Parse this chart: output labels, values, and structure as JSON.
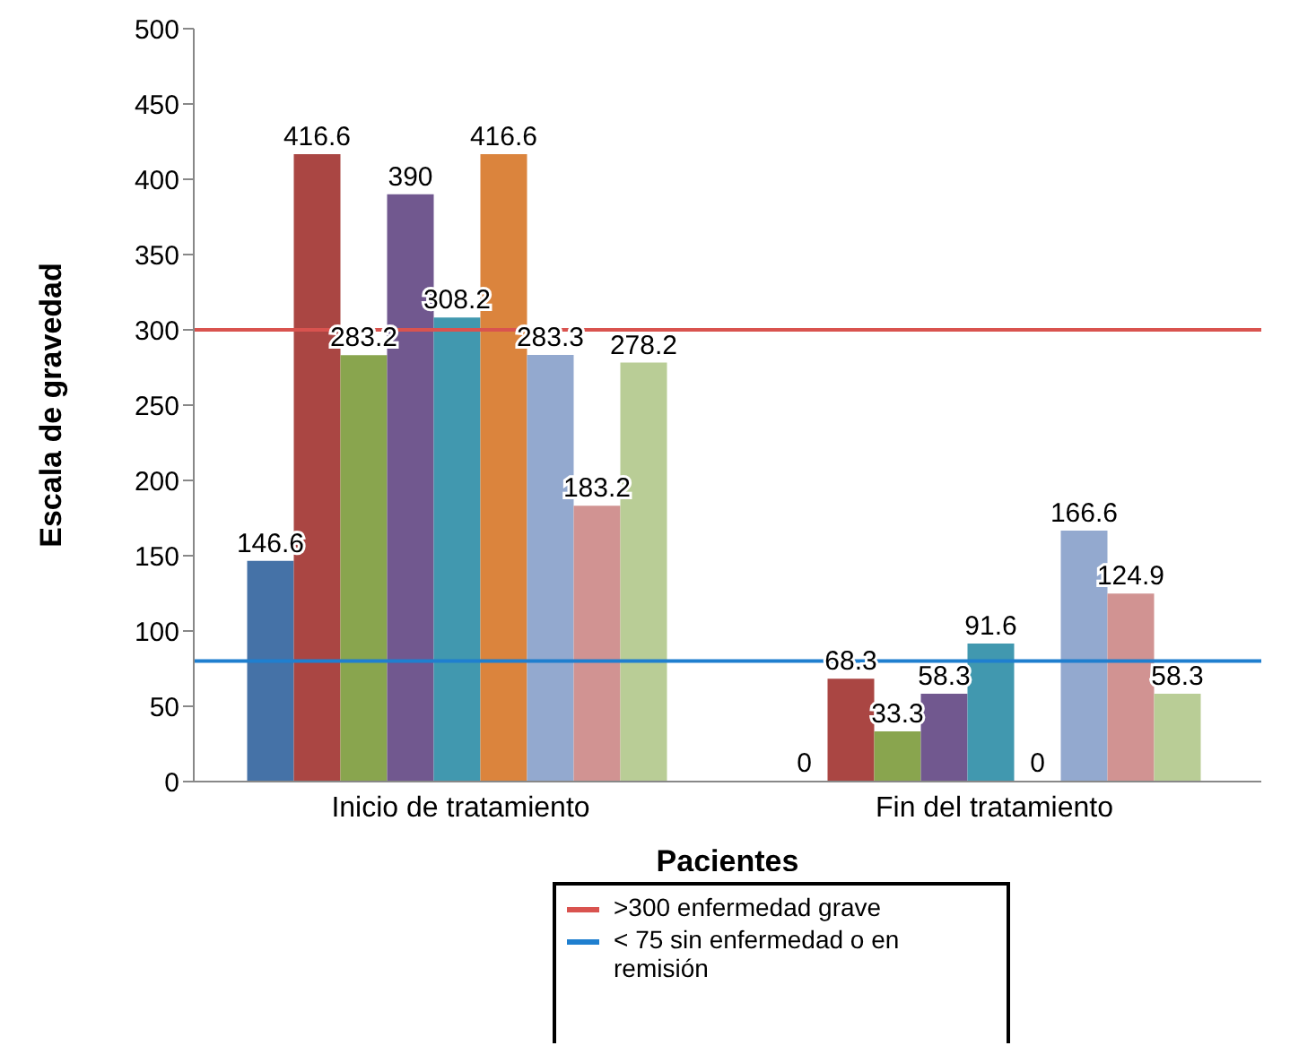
{
  "chart_data": {
    "type": "bar",
    "xlabel": "Pacientes",
    "ylabel": "Escala de gravedad",
    "categories": [
      "Inicio de tratamiento",
      "Fin del tratamiento"
    ],
    "series": [
      {
        "color": "#4572a7",
        "values": [
          146.6,
          0
        ]
      },
      {
        "color": "#aa4643",
        "values": [
          416.6,
          68.3
        ]
      },
      {
        "color": "#89a54e",
        "values": [
          283.2,
          33.3
        ]
      },
      {
        "color": "#71588f",
        "values": [
          390,
          58.3
        ]
      },
      {
        "color": "#4198af",
        "values": [
          308.2,
          91.6
        ]
      },
      {
        "color": "#db843d",
        "values": [
          416.6,
          0
        ]
      },
      {
        "color": "#93a9cf",
        "values": [
          283.3,
          166.6
        ]
      },
      {
        "color": "#d19392",
        "values": [
          183.2,
          124.9
        ]
      },
      {
        "color": "#b9cd96",
        "values": [
          278.2,
          58.3
        ]
      }
    ],
    "ylim": [
      0,
      500
    ],
    "yticks": [
      0,
      50,
      100,
      150,
      200,
      250,
      300,
      350,
      400,
      450,
      500
    ],
    "grid": false,
    "data_labels": true,
    "legend": "bottom",
    "ref_lines": [
      {
        "axis": "y",
        "value": 300,
        "label": ">300 enfermedad grave",
        "color": "#d9534f"
      },
      {
        "axis": "y",
        "value": 80,
        "label": "< 75 sin enfermedad o en remisión",
        "color": "#1f7fcf"
      }
    ]
  }
}
